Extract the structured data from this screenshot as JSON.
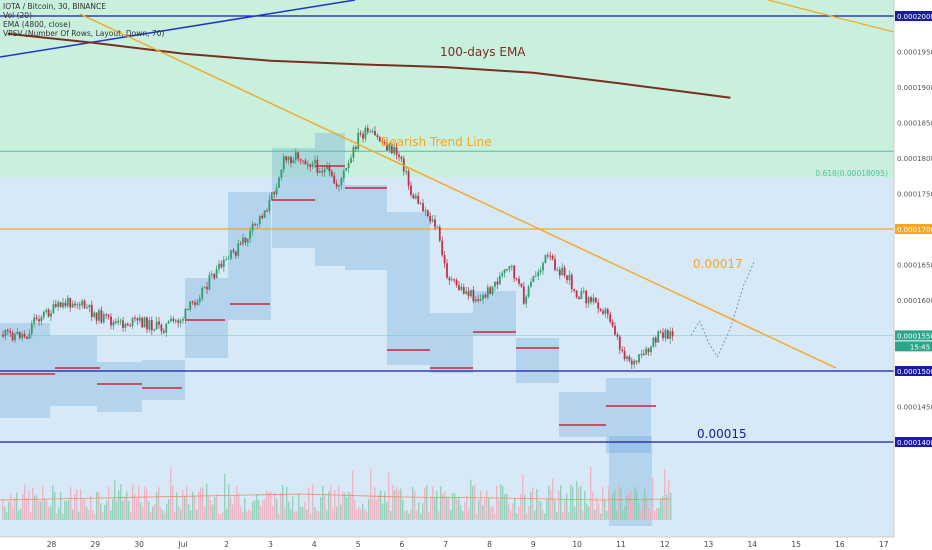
{
  "header": {
    "symbol_line": "IOTA / Bitcoin, 30, BINANCE",
    "indicators": [
      "Vol (20)",
      "EMA (4800, close)",
      "VPSV (Number Of Rows, Layout, Down, 70)"
    ]
  },
  "annotations": {
    "ema_label": "100-days EMA",
    "trendline_label": "Bearish Trend Line",
    "fib_label": "0.618(0.00018095)",
    "resistance_label": "0.00017",
    "support_label": "0.00015"
  },
  "price_axis": {
    "ticks": [
      "0.00020000",
      "0.00019500",
      "0.00019000",
      "0.00018500",
      "0.00018000",
      "0.00017500",
      "0.00017000",
      "0.00016500",
      "0.00016000",
      "0.00015502",
      "0.00015000",
      "0.00014500",
      "0.00014000"
    ],
    "current_price": "0.00015502",
    "countdown": "15:45"
  },
  "time_axis": {
    "labels": [
      "28",
      "29",
      "30",
      "Jul",
      "2",
      "3",
      "4",
      "5",
      "6",
      "7",
      "8",
      "9",
      "10",
      "11",
      "12",
      "13",
      "14",
      "15",
      "16",
      "17"
    ]
  },
  "colors": {
    "zone_green": "#c8f0dc",
    "zone_blue": "#d7e9f7",
    "ema": "#7a2e22",
    "trendline": "#f5a623",
    "hline_blue": "#1a1aaa",
    "hline_orange": "#f5a623",
    "fib": "#4fc1a6",
    "candle_up": "#2e9e6a",
    "candle_down": "#c0304a"
  },
  "chart_data": {
    "type": "candlestick",
    "title": "IOTA / Bitcoin, 30, BINANCE",
    "x_dates": [
      "28",
      "29",
      "30",
      "Jul",
      "2",
      "3",
      "4",
      "5",
      "6",
      "7",
      "8",
      "9",
      "10",
      "11",
      "12",
      "13",
      "14",
      "15",
      "16",
      "17"
    ],
    "ylim": [
      0.0001385,
      0.0002055
    ],
    "series": [
      {
        "name": "price_path",
        "x": [
          27.5,
          28.0,
          28.5,
          29.0,
          29.5,
          30.0,
          30.5,
          31.0,
          31.5,
          32.0,
          32.5,
          33.0,
          33.3,
          33.6,
          34.0,
          34.3,
          34.5,
          34.8,
          35.0,
          35.2,
          35.5,
          35.8,
          36.0,
          36.2,
          36.5,
          36.8,
          37.0,
          37.2,
          37.5,
          37.8,
          38.0,
          38.3,
          38.5,
          38.8,
          39.0,
          39.3,
          39.5,
          39.8,
          40.0,
          40.3,
          40.5,
          40.8,
          41.0,
          41.3,
          41.6,
          41.8,
          42.0,
          42.2,
          42.5,
          42.6
        ],
        "y": [
          0.000157,
          0.0001585,
          0.00016,
          0.000158,
          0.0001565,
          0.000157,
          0.000156,
          0.0001575,
          0.000162,
          0.0001655,
          0.000169,
          0.000174,
          0.0001795,
          0.0001805,
          0.000179,
          0.000178,
          0.000176,
          0.000179,
          0.000183,
          0.0001835,
          0.0001825,
          0.000181,
          0.00018,
          0.000175,
          0.000173,
          0.00017,
          0.000164,
          0.000162,
          0.000161,
          0.00016,
          0.0001615,
          0.0001635,
          0.0001645,
          0.00016,
          0.000163,
          0.000166,
          0.000165,
          0.000163,
          0.000161,
          0.00016,
          0.0001595,
          0.000157,
          0.000153,
          0.000151,
          0.0001525,
          0.0001545,
          0.0001555,
          0.000155,
          0.0001545,
          0.0001551
        ]
      },
      {
        "name": "100-days EMA",
        "x": [
          27.0,
          29.0,
          31.0,
          33.0,
          35.0,
          37.0,
          39.0,
          41.0,
          42.5,
          43.5
        ],
        "y": [
          0.0001975,
          0.0001962,
          0.0001947,
          0.0001937,
          0.0001932,
          0.0001928,
          0.000192,
          0.0001905,
          0.0001893,
          0.0001885
        ]
      },
      {
        "name": "Bearish Trend Line",
        "x": [
          28.8,
          44.5
        ],
        "y": [
          0.0002005,
          0.0001585
        ]
      },
      {
        "name": "projection",
        "x": [
          42.6,
          42.8,
          43.0,
          43.2,
          43.5,
          43.8,
          44.05
        ],
        "y": [
          0.000155,
          0.000157,
          0.000154,
          0.000152,
          0.000156,
          0.000162,
          0.0001655
        ]
      }
    ],
    "hlines": [
      {
        "label": "0.00020000",
        "y": 0.0002
      },
      {
        "label": "0.618(0.00018095)",
        "y": 0.00018095
      },
      {
        "label": "0.00017",
        "y": 0.00017
      },
      {
        "label": "0.00015",
        "y": 0.00015
      },
      {
        "label": "0.00014000",
        "y": 0.00014
      }
    ],
    "xlabel": "",
    "ylabel": "",
    "grid": false,
    "legend": "top-left"
  }
}
